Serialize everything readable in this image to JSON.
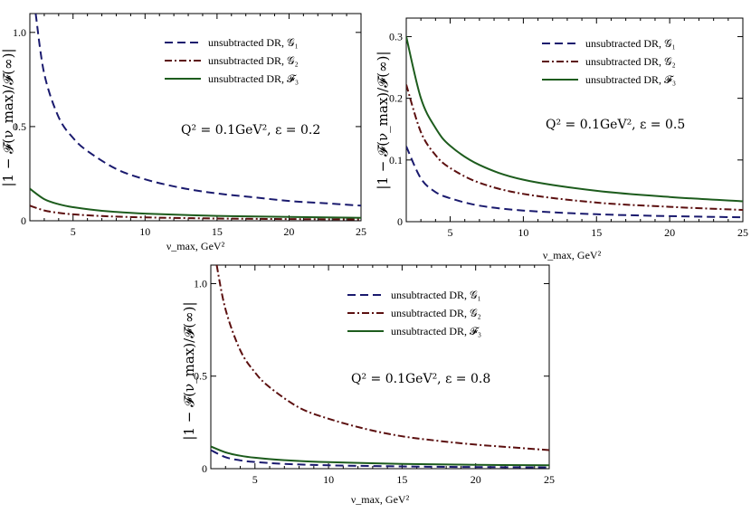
{
  "colors": {
    "series_1": "#1a1a6e",
    "series_2": "#5c1010",
    "series_3": "#1d5c1d"
  },
  "chart_data": [
    {
      "type": "line",
      "xlabel": "ν_max, GeV²",
      "ylabel": "|1 − 𝓕(ν_max)/𝓕(∞)|",
      "annotation": "Q² = 0.1GeV²,    ε = 0.2",
      "xlim": [
        2,
        25
      ],
      "ylim": [
        0,
        1.1
      ],
      "xticks": [
        5,
        10,
        15,
        20,
        25
      ],
      "yticks": [
        0,
        0.5,
        1.0
      ],
      "ytick_labels": [
        "0",
        "0.5",
        "1.0"
      ],
      "legend_position": "top-right",
      "series": [
        {
          "name": "unsubtracted DR, 𝒢₁",
          "style": "dashed",
          "color": "series_1",
          "x": [
            2.4,
            3,
            4,
            5,
            6,
            8,
            10,
            12.5,
            15,
            17.5,
            20,
            22.5,
            25
          ],
          "y": [
            1.1,
            0.78,
            0.55,
            0.44,
            0.37,
            0.275,
            0.22,
            0.175,
            0.145,
            0.125,
            0.105,
            0.093,
            0.08
          ]
        },
        {
          "name": "unsubtracted DR, 𝒢₂",
          "style": "dashdot",
          "color": "series_2",
          "x": [
            2,
            3,
            4,
            5,
            7,
            10,
            15,
            20,
            25
          ],
          "y": [
            0.08,
            0.055,
            0.042,
            0.034,
            0.025,
            0.018,
            0.012,
            0.009,
            0.007
          ]
        },
        {
          "name": "unsubtracted DR, 𝓕₃",
          "style": "solid",
          "color": "series_3",
          "x": [
            2,
            3,
            4,
            5,
            7,
            10,
            15,
            20,
            25
          ],
          "y": [
            0.17,
            0.115,
            0.088,
            0.072,
            0.053,
            0.038,
            0.026,
            0.02,
            0.016
          ]
        }
      ]
    },
    {
      "type": "line",
      "xlabel": "ν_max, GeV²",
      "ylabel": "|1 − 𝓕(ν_max)/𝓕(∞)|",
      "annotation": "Q² = 0.1GeV²,    ε = 0.5",
      "xlim": [
        2,
        25
      ],
      "ylim": [
        0,
        0.33
      ],
      "xticks": [
        5,
        10,
        15,
        20,
        25
      ],
      "yticks": [
        0,
        0.1,
        0.2,
        0.3
      ],
      "ytick_labels": [
        "0",
        "0.1",
        "0.2",
        "0.3"
      ],
      "legend_position": "top-right",
      "series": [
        {
          "name": "unsubtracted DR, 𝒢₁",
          "style": "dashed",
          "color": "series_1",
          "x": [
            2,
            3,
            4,
            5,
            7,
            10,
            15,
            20,
            25
          ],
          "y": [
            0.122,
            0.07,
            0.048,
            0.038,
            0.026,
            0.018,
            0.012,
            0.009,
            0.007
          ]
        },
        {
          "name": "unsubtracted DR, 𝒢₂",
          "style": "dashdot",
          "color": "series_2",
          "x": [
            2,
            3,
            4,
            5,
            7,
            10,
            15,
            20,
            25
          ],
          "y": [
            0.222,
            0.145,
            0.108,
            0.087,
            0.063,
            0.045,
            0.031,
            0.024,
            0.019
          ]
        },
        {
          "name": "unsubtracted DR, 𝓕₃",
          "style": "solid",
          "color": "series_3",
          "x": [
            2,
            3,
            4,
            5,
            7,
            10,
            15,
            20,
            25
          ],
          "y": [
            0.3,
            0.2,
            0.152,
            0.123,
            0.092,
            0.068,
            0.05,
            0.04,
            0.033
          ]
        }
      ]
    },
    {
      "type": "line",
      "xlabel": "ν_max, GeV²",
      "ylabel": "|1 − 𝓕(ν_max)/𝓕(∞)|",
      "annotation": "Q² = 0.1GeV²,    ε = 0.8",
      "xlim": [
        2,
        25
      ],
      "ylim": [
        0,
        1.1
      ],
      "xticks": [
        5,
        10,
        15,
        20,
        25
      ],
      "yticks": [
        0,
        0.5,
        1.0
      ],
      "ytick_labels": [
        "0",
        "0.5",
        "1.0"
      ],
      "legend_position": "top-right",
      "series": [
        {
          "name": "unsubtracted DR, 𝒢₁",
          "style": "dashed",
          "color": "series_1",
          "x": [
            2,
            3,
            4,
            5,
            7,
            10,
            15,
            20,
            25
          ],
          "y": [
            0.1,
            0.062,
            0.045,
            0.036,
            0.026,
            0.018,
            0.012,
            0.009,
            0.007
          ]
        },
        {
          "name": "unsubtracted DR, 𝒢₂",
          "style": "dashdot",
          "color": "series_2",
          "x": [
            2.4,
            3,
            4,
            5,
            6,
            8,
            10,
            12.5,
            15,
            17.5,
            20,
            22.5,
            25
          ],
          "y": [
            1.1,
            0.86,
            0.64,
            0.52,
            0.44,
            0.33,
            0.27,
            0.215,
            0.175,
            0.15,
            0.13,
            0.115,
            0.1
          ]
        },
        {
          "name": "unsubtracted DR, 𝓕₃",
          "style": "solid",
          "color": "series_3",
          "x": [
            2,
            3,
            4,
            5,
            7,
            10,
            15,
            20,
            25
          ],
          "y": [
            0.12,
            0.088,
            0.07,
            0.059,
            0.046,
            0.035,
            0.026,
            0.021,
            0.018
          ]
        }
      ]
    }
  ]
}
